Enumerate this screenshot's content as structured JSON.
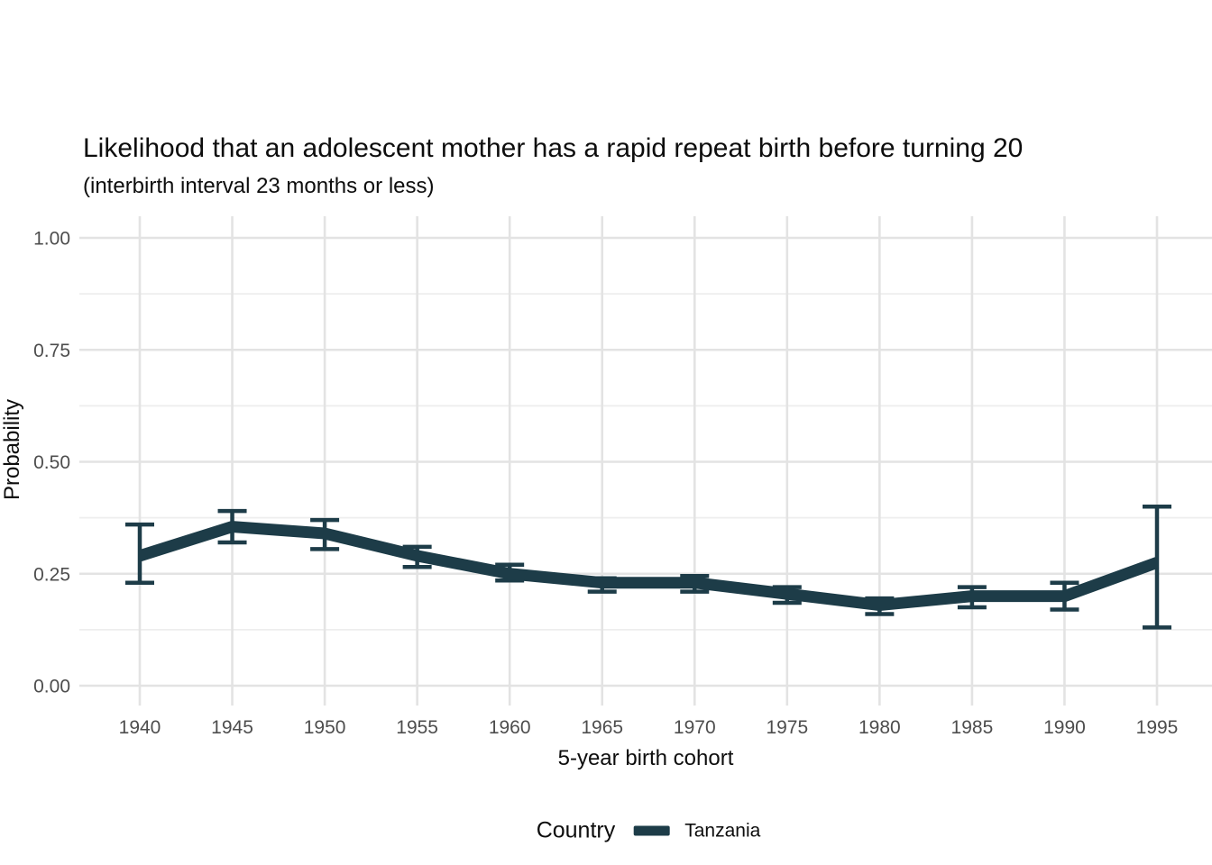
{
  "chart_data": {
    "type": "line",
    "title": "Likelihood that an adolescent mother has a rapid repeat birth before turning 20",
    "subtitle": "(interbirth interval 23 months or less)",
    "xlabel": "5-year birth cohort",
    "ylabel": "Probability",
    "x": [
      1940,
      1945,
      1950,
      1955,
      1960,
      1965,
      1970,
      1975,
      1980,
      1985,
      1990,
      1995
    ],
    "xtick_labels": [
      "1940",
      "1945",
      "1950",
      "1955",
      "1960",
      "1965",
      "1970",
      "1975",
      "1980",
      "1985",
      "1990",
      "1995"
    ],
    "xlim": [
      1940,
      1995
    ],
    "ylim": [
      0,
      1
    ],
    "yticks": [
      0,
      0.25,
      0.5,
      0.75,
      1.0
    ],
    "ytick_labels": [
      "0.00",
      "0.25",
      "0.50",
      "0.75",
      "1.00"
    ],
    "minor_yticks": [
      0.125,
      0.375,
      0.625,
      0.875
    ],
    "grid": {
      "on": true,
      "major_color": "#e3e3e3",
      "minor_color": "#eeeeee"
    },
    "series": [
      {
        "name": "Tanzania",
        "color": "#1d3c48",
        "values": [
          0.29,
          0.355,
          0.34,
          0.29,
          0.25,
          0.23,
          0.23,
          0.205,
          0.18,
          0.2,
          0.2,
          0.275
        ],
        "ci_lower": [
          0.23,
          0.32,
          0.305,
          0.265,
          0.235,
          0.21,
          0.21,
          0.185,
          0.16,
          0.175,
          0.17,
          0.13
        ],
        "ci_upper": [
          0.36,
          0.39,
          0.37,
          0.31,
          0.27,
          0.24,
          0.245,
          0.22,
          0.195,
          0.22,
          0.23,
          0.4
        ]
      }
    ],
    "legend": {
      "title": "Country",
      "position": "bottom",
      "entries": [
        {
          "label": "Tanzania",
          "color": "#1d3c48"
        }
      ]
    }
  }
}
